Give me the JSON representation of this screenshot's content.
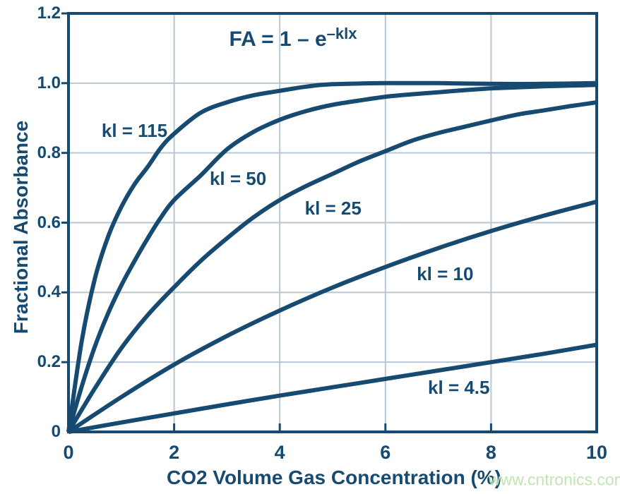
{
  "colors": {
    "navy": "#164a70",
    "grid": "#b9c6d3",
    "watermark_green": "#c3e5b2",
    "background": "#ffffff"
  },
  "formula": {
    "base": "FA = 1 – e",
    "exponent": "–klx"
  },
  "watermark": {
    "text": "www.cntronics.com"
  },
  "chart_data": {
    "type": "line",
    "title": "",
    "annotation": "FA = 1 – e^(–klx)",
    "xlabel": "CO2 Volume Gas Concentration (%)",
    "ylabel": "Fractional Absorbance",
    "xlim": [
      0,
      10
    ],
    "ylim": [
      0,
      1.2
    ],
    "grid": true,
    "x_ticks": [
      0,
      2,
      4,
      6,
      8,
      10
    ],
    "y_ticks": [
      0,
      0.2,
      0.4,
      0.6,
      0.8,
      1.0,
      1.2
    ],
    "x_tick_labels": [
      "0",
      "2",
      "4",
      "6",
      "8",
      "10"
    ],
    "y_tick_labels": [
      "0",
      "0.2",
      "0.4",
      "0.6",
      "0.8",
      "1.0",
      "1.2"
    ],
    "legend_position": "inline-labels",
    "series": [
      {
        "name": "kl = 115",
        "label_at": [
          1.25,
          0.865
        ],
        "x": [
          0,
          0.25,
          0.5,
          0.75,
          1,
          1.25,
          1.5,
          1.75,
          2,
          2.5,
          3,
          3.5,
          4,
          4.5,
          5,
          6,
          7,
          8,
          9,
          10
        ],
        "y": [
          0,
          0.26,
          0.44,
          0.56,
          0.645,
          0.71,
          0.76,
          0.815,
          0.855,
          0.915,
          0.945,
          0.965,
          0.978,
          0.99,
          0.997,
          1.0,
          1.0,
          0.998,
          0.998,
          1.0
        ]
      },
      {
        "name": "kl = 50",
        "label_at": [
          3.21,
          0.726
        ],
        "x": [
          0,
          0.25,
          0.5,
          0.75,
          1,
          1.25,
          1.5,
          1.75,
          2,
          2.5,
          3,
          3.5,
          4,
          4.5,
          5,
          5.5,
          6,
          6.5,
          7,
          7.5,
          8,
          8.5,
          9,
          9.5,
          10
        ],
        "y": [
          0,
          0.13,
          0.245,
          0.34,
          0.42,
          0.49,
          0.555,
          0.615,
          0.665,
          0.735,
          0.81,
          0.86,
          0.895,
          0.92,
          0.938,
          0.95,
          0.961,
          0.968,
          0.974,
          0.98,
          0.985,
          0.988,
          0.991,
          0.993,
          0.995
        ]
      },
      {
        "name": "kl = 25",
        "label_at": [
          5.01,
          0.641
        ],
        "x": [
          0,
          0.5,
          1,
          1.5,
          2,
          2.5,
          3,
          3.5,
          4,
          4.5,
          5,
          5.5,
          6,
          6.5,
          7,
          7.5,
          8,
          8.5,
          9,
          9.5,
          10
        ],
        "y": [
          0,
          0.125,
          0.24,
          0.335,
          0.415,
          0.49,
          0.555,
          0.615,
          0.665,
          0.705,
          0.74,
          0.775,
          0.805,
          0.835,
          0.857,
          0.875,
          0.893,
          0.91,
          0.922,
          0.934,
          0.945
        ]
      },
      {
        "name": "kl = 10",
        "label_at": [
          7.13,
          0.453
        ],
        "x": [
          0,
          1,
          2,
          3,
          4,
          5,
          6,
          7,
          8,
          9,
          10
        ],
        "y": [
          0,
          0.1,
          0.193,
          0.275,
          0.348,
          0.414,
          0.473,
          0.527,
          0.576,
          0.62,
          0.66
        ]
      },
      {
        "name": "kl = 4.5",
        "label_at": [
          7.39,
          0.127
        ],
        "x": [
          0,
          1,
          2,
          3,
          4,
          5,
          6,
          7,
          8,
          9,
          10
        ],
        "y": [
          0,
          0.027,
          0.053,
          0.079,
          0.104,
          0.128,
          0.152,
          0.176,
          0.2,
          0.224,
          0.25
        ]
      }
    ]
  }
}
